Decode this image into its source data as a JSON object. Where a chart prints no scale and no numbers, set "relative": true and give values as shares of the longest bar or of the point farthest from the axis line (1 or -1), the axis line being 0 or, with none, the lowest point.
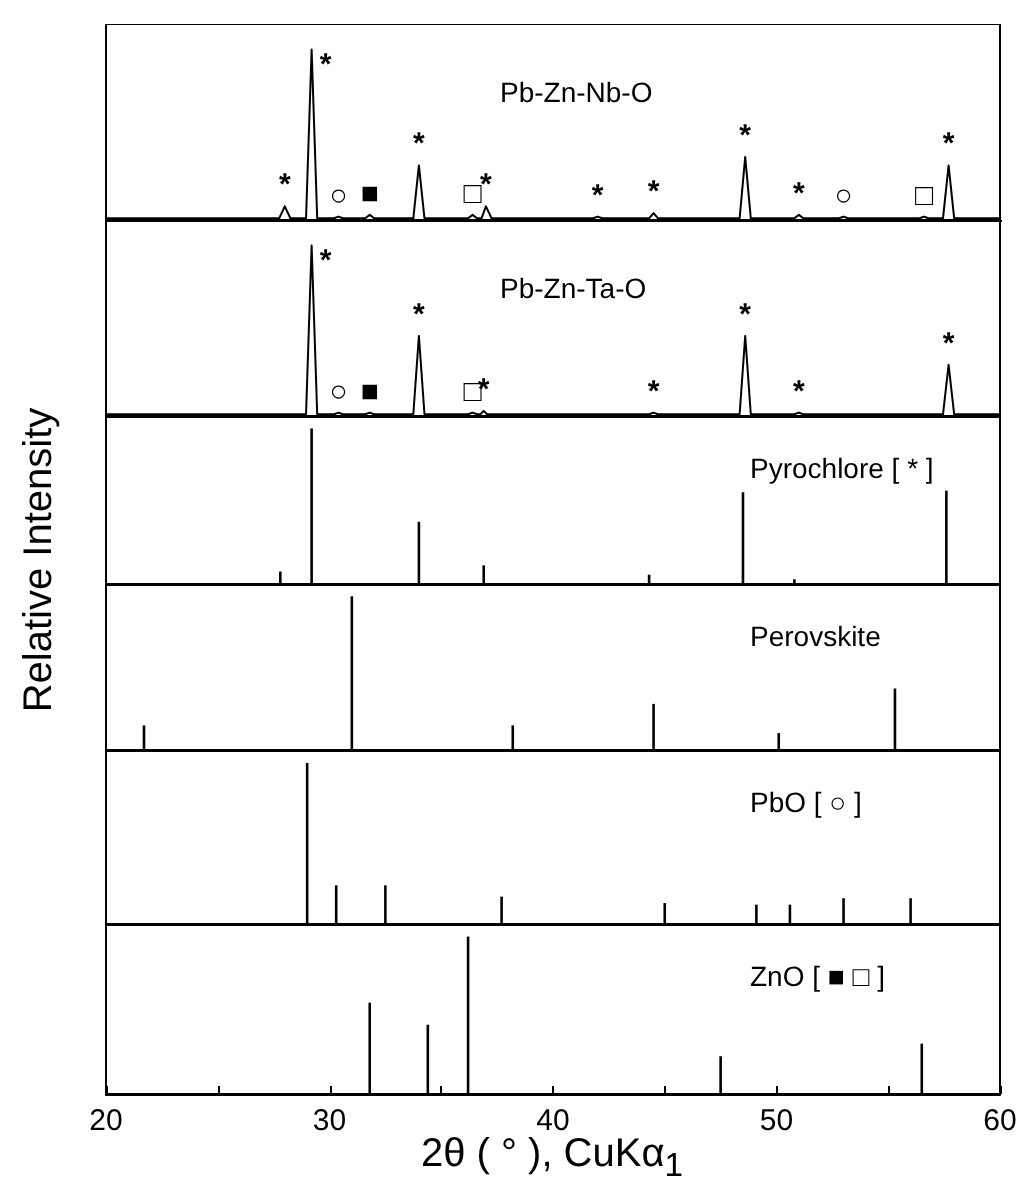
{
  "chart_data": [
    {
      "type": "line",
      "title": "Pb-Zn-Nb-O",
      "relative": true,
      "xlim": [
        20,
        60
      ],
      "xticks": [
        20,
        {
          "value": 25,
          "label": null
        },
        30,
        {
          "value": 35,
          "label": null
        },
        40,
        {
          "value": 45,
          "label": null
        },
        50,
        {
          "value": 55,
          "label": null
        },
        60
      ],
      "tick_labels": false,
      "marker": "none",
      "line_style": "solid",
      "x": [
        20,
        27.75,
        28,
        28.25,
        28.95,
        29.2,
        29.45,
        30.2,
        30.4,
        30.6,
        31.6,
        31.8,
        32.0,
        33.75,
        34.0,
        34.25,
        36.2,
        36.4,
        36.6,
        36.8,
        37.0,
        37.25,
        41.8,
        42.0,
        42.2,
        44.3,
        44.5,
        44.7,
        48.35,
        48.6,
        48.85,
        50.8,
        51.0,
        51.2,
        52.8,
        53.0,
        53.2,
        56.4,
        56.6,
        56.8,
        57.45,
        57.7,
        57.95,
        60
      ],
      "series": [
        {
          "color": "#000000",
          "values": [
            0.01,
            0.01,
            0.08,
            0.01,
            0.01,
            1,
            0.01,
            0.01,
            0.02,
            0.01,
            0.01,
            0.03,
            0.01,
            0.01,
            0.32,
            0.01,
            0.01,
            0.03,
            0.01,
            0.01,
            0.08,
            0.01,
            0.01,
            0.02,
            0.01,
            0.01,
            0.04,
            0.01,
            0.01,
            0.37,
            0.01,
            0.01,
            0.03,
            0.01,
            0.01,
            0.02,
            0.01,
            0.01,
            0.02,
            0.01,
            0.01,
            0.32,
            0.01,
            0.01
          ]
        }
      ],
      "annotations": [
        {
          "text": "*",
          "x": 28.0,
          "y": 0.08
        },
        {
          "text": "*",
          "x": 29.2,
          "y": 1
        },
        {
          "text": "○",
          "x": 30.4,
          "y": 0.02
        },
        {
          "text": "■",
          "x": 31.8,
          "y": 0.03
        },
        {
          "text": "*",
          "x": 34.0,
          "y": 0.32
        },
        {
          "text": "□",
          "x": 36.4,
          "y": 0.03
        },
        {
          "text": "*",
          "x": 37.0,
          "y": 0.08
        },
        {
          "text": "*",
          "x": 42.0,
          "y": 0.02
        },
        {
          "text": "*",
          "x": 44.5,
          "y": 0.04
        },
        {
          "text": "*",
          "x": 48.6,
          "y": 0.37
        },
        {
          "text": "*",
          "x": 51.0,
          "y": 0.03
        },
        {
          "text": "○",
          "x": 53.0,
          "y": 0.02
        },
        {
          "text": "□",
          "x": 56.6,
          "y": 0.02
        },
        {
          "text": "*",
          "x": 57.7,
          "y": 0.32
        }
      ]
    },
    {
      "type": "line",
      "title": "Pb-Zn-Ta-O",
      "relative": true,
      "xlim": [
        20,
        60
      ],
      "tick_labels": false,
      "marker": "none",
      "line_style": "solid",
      "x": [
        20,
        28.95,
        29.2,
        29.45,
        30.2,
        30.4,
        30.6,
        31.6,
        31.8,
        32.0,
        33.75,
        34.0,
        34.25,
        36.2,
        36.4,
        36.6,
        36.75,
        36.9,
        37.05,
        44.3,
        44.5,
        44.7,
        48.35,
        48.6,
        48.85,
        50.8,
        51.0,
        51.2,
        57.45,
        57.7,
        57.95,
        60
      ],
      "series": [
        {
          "color": "#000000",
          "values": [
            0.01,
            0.01,
            1,
            0.01,
            0.01,
            0.02,
            0.01,
            0.01,
            0.02,
            0.01,
            0.01,
            0.47,
            0.01,
            0.01,
            0.02,
            0.01,
            0.01,
            0.03,
            0.01,
            0.01,
            0.02,
            0.01,
            0.01,
            0.47,
            0.01,
            0.01,
            0.02,
            0.01,
            0.01,
            0.3,
            0.01,
            0.01
          ]
        }
      ],
      "annotations": [
        {
          "text": "*",
          "x": 29.2,
          "y": 1
        },
        {
          "text": "○",
          "x": 30.4,
          "y": 0.02
        },
        {
          "text": "■",
          "x": 31.8,
          "y": 0.02
        },
        {
          "text": "*",
          "x": 34.0,
          "y": 0.47
        },
        {
          "text": "□",
          "x": 36.4,
          "y": 0.02
        },
        {
          "text": "*",
          "x": 36.9,
          "y": 0.03
        },
        {
          "text": "*",
          "x": 44.5,
          "y": 0.02
        },
        {
          "text": "*",
          "x": 48.6,
          "y": 0.47
        },
        {
          "text": "*",
          "x": 51.0,
          "y": 0.02
        },
        {
          "text": "*",
          "x": 57.7,
          "y": 0.3
        }
      ]
    },
    {
      "type": "bar",
      "title": "Pyrochlore [ * ]",
      "ylabel": "Relative Intensity",
      "relative": true,
      "xlim": [
        20,
        60
      ],
      "tick_labels": false,
      "x": [
        27.8,
        29.2,
        34.0,
        36.9,
        44.3,
        48.5,
        50.8,
        57.6
      ],
      "values": [
        0.08,
        1,
        0.4,
        0.12,
        0.06,
        0.59,
        0.03,
        0.6
      ],
      "color": "#000000"
    },
    {
      "type": "bar",
      "title": "Perovskite",
      "relative": true,
      "xlim": [
        20,
        60
      ],
      "tick_labels": false,
      "x": [
        21.7,
        31.0,
        38.2,
        44.5,
        50.1,
        55.3
      ],
      "values": [
        0.16,
        1,
        0.16,
        0.3,
        0.11,
        0.4
      ],
      "color": "#000000"
    },
    {
      "type": "bar",
      "title": "PbO [ ○ ]",
      "relative": true,
      "xlim": [
        20,
        60
      ],
      "tick_labels": false,
      "x": [
        29.0,
        30.3,
        32.5,
        37.7,
        45.0,
        49.1,
        50.6,
        53.0,
        56.0
      ],
      "values": [
        1,
        0.24,
        0.24,
        0.17,
        0.13,
        0.12,
        0.12,
        0.16,
        0.16
      ],
      "color": "#000000"
    },
    {
      "type": "bar",
      "title": "ZnO [ ■ □ ]",
      "xlabel": "2θ ( ° ), CuKα$_{1}$",
      "relative": true,
      "xlim": [
        20,
        60
      ],
      "xticks": [
        20,
        {
          "value": 25,
          "label": null
        },
        30,
        {
          "value": 35,
          "label": null
        },
        40,
        {
          "value": 45,
          "label": null
        },
        50,
        {
          "value": 55,
          "label": null
        },
        60
      ],
      "tick_labels": "x",
      "x": [
        31.8,
        34.4,
        36.2,
        47.5,
        56.5
      ],
      "values": [
        0.58,
        0.44,
        1,
        0.24,
        0.32
      ],
      "color": "#000000"
    }
  ]
}
